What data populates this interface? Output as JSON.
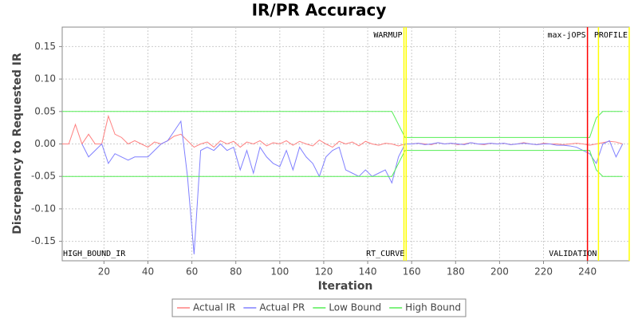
{
  "chart_data": {
    "type": "line",
    "title": "IR/PR Accuracy",
    "x_label": "Iteration",
    "y_label": "Discrepancy to Requested IR",
    "x": [
      1,
      4,
      7,
      10,
      13,
      16,
      19,
      22,
      25,
      28,
      31,
      34,
      37,
      40,
      43,
      46,
      49,
      52,
      55,
      58,
      61,
      64,
      67,
      70,
      73,
      76,
      79,
      82,
      85,
      88,
      91,
      94,
      97,
      100,
      103,
      106,
      109,
      112,
      115,
      118,
      121,
      124,
      127,
      130,
      133,
      136,
      139,
      142,
      145,
      148,
      151,
      154,
      157,
      160,
      163,
      166,
      169,
      172,
      175,
      178,
      181,
      184,
      187,
      190,
      193,
      196,
      199,
      202,
      205,
      208,
      211,
      214,
      217,
      220,
      223,
      226,
      229,
      232,
      235,
      238,
      241,
      244,
      247,
      250,
      253,
      256
    ],
    "series": [
      {
        "name": "Actual IR",
        "color": "#ff8080",
        "values": [
          0,
          0,
          0.03,
          0,
          0.015,
          0,
          0,
          0.043,
          0.015,
          0.01,
          0,
          0.005,
          0,
          -0.005,
          0.003,
          0,
          0.005,
          0.012,
          0.015,
          0.005,
          -0.005,
          0,
          0.003,
          -0.005,
          0.005,
          0,
          0.004,
          -0.005,
          0.003,
          0,
          0.005,
          -0.003,
          0.002,
          0,
          0.005,
          -0.002,
          0.004,
          0,
          -0.003,
          0.006,
          0,
          -0.005,
          0.004,
          0,
          0.003,
          -0.003,
          0.004,
          0,
          -0.002,
          0.001,
          0,
          -0.003,
          0,
          0,
          0.001,
          0,
          -0.001,
          0.002,
          0,
          0.001,
          -0.001,
          0,
          0.002,
          0,
          -0.001,
          0.001,
          0,
          0.001,
          -0.001,
          0,
          0.002,
          0,
          -0.001,
          0.001,
          0,
          0,
          -0.001,
          0,
          0.001,
          0,
          -0.002,
          0,
          0.002,
          0.004,
          0.003,
          0
        ]
      },
      {
        "name": "Actual PR",
        "color": "#8080ff",
        "values": [
          null,
          null,
          null,
          0,
          -0.02,
          -0.01,
          0,
          -0.03,
          -0.015,
          -0.02,
          -0.025,
          -0.02,
          -0.02,
          -0.02,
          -0.01,
          0,
          0.005,
          0.02,
          0.035,
          -0.05,
          -0.17,
          -0.01,
          -0.005,
          -0.01,
          0,
          -0.01,
          -0.005,
          -0.04,
          -0.01,
          -0.045,
          -0.005,
          -0.02,
          -0.03,
          -0.035,
          -0.01,
          -0.04,
          -0.005,
          -0.02,
          -0.03,
          -0.05,
          -0.02,
          -0.01,
          -0.005,
          -0.04,
          -0.045,
          -0.05,
          -0.04,
          -0.05,
          -0.045,
          -0.04,
          -0.06,
          -0.02,
          0,
          0,
          0.001,
          -0.001,
          0,
          0.002,
          0,
          0.001,
          0,
          -0.001,
          0.002,
          0,
          0,
          0.001,
          0,
          0.001,
          -0.001,
          0,
          0.001,
          0,
          -0.001,
          0,
          0,
          -0.002,
          -0.002,
          -0.003,
          -0.005,
          -0.01,
          -0.015,
          -0.03,
          0,
          0.005,
          -0.02,
          0
        ]
      },
      {
        "name": "Low Bound",
        "color": "#55ee55",
        "values": [
          -0.05,
          -0.05,
          -0.05,
          -0.05,
          -0.05,
          -0.05,
          -0.05,
          -0.05,
          -0.05,
          -0.05,
          -0.05,
          -0.05,
          -0.05,
          -0.05,
          -0.05,
          -0.05,
          -0.05,
          -0.05,
          -0.05,
          -0.05,
          -0.05,
          -0.05,
          -0.05,
          -0.05,
          -0.05,
          -0.05,
          -0.05,
          -0.05,
          -0.05,
          -0.05,
          -0.05,
          -0.05,
          -0.05,
          -0.05,
          -0.05,
          -0.05,
          -0.05,
          -0.05,
          -0.05,
          -0.05,
          -0.05,
          -0.05,
          -0.05,
          -0.05,
          -0.05,
          -0.05,
          -0.05,
          -0.05,
          -0.05,
          -0.05,
          -0.05,
          -0.03,
          -0.01,
          -0.01,
          -0.01,
          -0.01,
          -0.01,
          -0.01,
          -0.01,
          -0.01,
          -0.01,
          -0.01,
          -0.01,
          -0.01,
          -0.01,
          -0.01,
          -0.01,
          -0.01,
          -0.01,
          -0.01,
          -0.01,
          -0.01,
          -0.01,
          -0.01,
          -0.01,
          -0.01,
          -0.01,
          -0.01,
          -0.01,
          -0.01,
          -0.01,
          -0.04,
          -0.05,
          -0.05,
          -0.05,
          -0.05
        ]
      },
      {
        "name": "High Bound",
        "color": "#55ee55",
        "values": [
          0.05,
          0.05,
          0.05,
          0.05,
          0.05,
          0.05,
          0.05,
          0.05,
          0.05,
          0.05,
          0.05,
          0.05,
          0.05,
          0.05,
          0.05,
          0.05,
          0.05,
          0.05,
          0.05,
          0.05,
          0.05,
          0.05,
          0.05,
          0.05,
          0.05,
          0.05,
          0.05,
          0.05,
          0.05,
          0.05,
          0.05,
          0.05,
          0.05,
          0.05,
          0.05,
          0.05,
          0.05,
          0.05,
          0.05,
          0.05,
          0.05,
          0.05,
          0.05,
          0.05,
          0.05,
          0.05,
          0.05,
          0.05,
          0.05,
          0.05,
          0.05,
          0.03,
          0.01,
          0.01,
          0.01,
          0.01,
          0.01,
          0.01,
          0.01,
          0.01,
          0.01,
          0.01,
          0.01,
          0.01,
          0.01,
          0.01,
          0.01,
          0.01,
          0.01,
          0.01,
          0.01,
          0.01,
          0.01,
          0.01,
          0.01,
          0.01,
          0.01,
          0.01,
          0.01,
          0.01,
          0.01,
          0.04,
          0.05,
          0.05,
          0.05,
          0.05
        ]
      }
    ],
    "markers": [
      {
        "x": 1,
        "label": "HIGH_BOUND_IR",
        "position": "bottom"
      },
      {
        "x": 156.5,
        "label": "WARMUP",
        "color": "#ffff00",
        "position": "top"
      },
      {
        "x": 157.5,
        "label": "RT_CURVE",
        "color": "#ffff00",
        "position": "bottom"
      },
      {
        "x": 240,
        "label": "max-jOPS",
        "color": "#ff0000",
        "position": "top"
      },
      {
        "x": 245,
        "label": "VALIDATION",
        "color": "#ffff00",
        "position": "bottom"
      },
      {
        "x": 259,
        "label": "PROFILE",
        "color": "#ffff00",
        "position": "top"
      }
    ],
    "xlim": [
      1,
      259
    ],
    "xticks": [
      20,
      40,
      60,
      80,
      100,
      120,
      140,
      160,
      180,
      200,
      220,
      240
    ],
    "ylim": [
      -0.18,
      0.18
    ],
    "yticks": [
      -0.15,
      {
        "value": -0.1,
        "label": "-0.10"
      },
      -0.05,
      {
        "value": 0,
        "label": "0.00"
      },
      0.05,
      {
        "value": 0.1,
        "label": "0.10"
      },
      0.15
    ],
    "grid": true,
    "legend": "bottom"
  }
}
